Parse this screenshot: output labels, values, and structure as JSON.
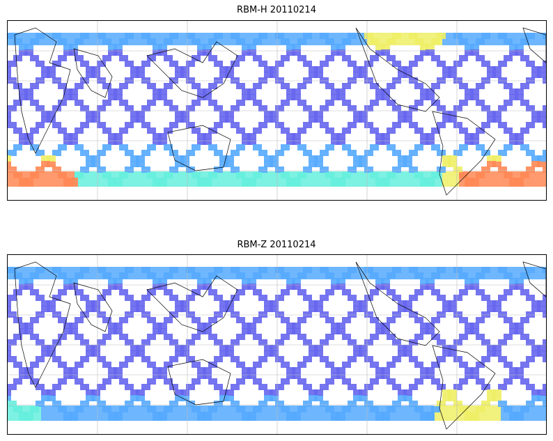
{
  "panels": [
    {
      "title": "RBM-H 20110214",
      "variant": "high"
    },
    {
      "title": "RBM-Z 20110214",
      "variant": "low"
    }
  ],
  "colormap": {
    "low": "#6666ee",
    "mid_low": "#55aaff",
    "mid": "#66eedd",
    "mid_high": "#eeee66",
    "high": "#ff8855"
  },
  "colors": {
    "coastline": "#000000",
    "gridline": "#bbbbbb",
    "frame": "#000000"
  }
}
